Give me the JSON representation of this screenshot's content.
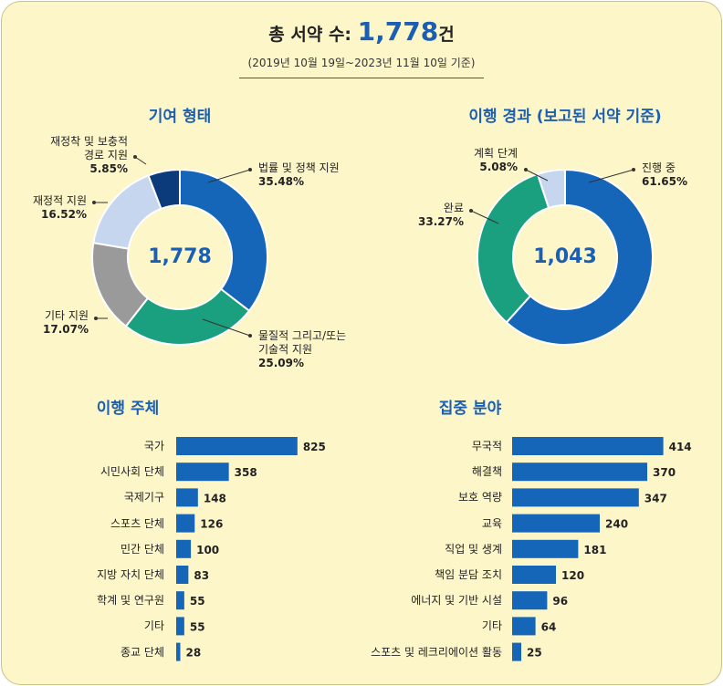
{
  "header": {
    "title": "총 서약 수:",
    "total": "1,778",
    "unit": "건",
    "subtitle": "(2019년 10월 19일~2023년 11월 10일 기준)"
  },
  "chart_data": [
    {
      "type": "donut",
      "title": "기여 형태",
      "center_label": "1,778",
      "categories": [
        "법률 및 정책 지원",
        "물질적 그리고/또는\n기술적 지원",
        "기타 지원",
        "재정적 지원",
        "재정착 및 보충적\n경로 지원"
      ],
      "values": [
        35.48,
        25.09,
        17.07,
        16.52,
        5.85
      ],
      "value_labels": [
        "35.48%",
        "25.09%",
        "17.07%",
        "16.52%",
        "5.85%"
      ],
      "colors": [
        "#1565b8",
        "#1aa07f",
        "#9a9a9a",
        "#c6d6ee",
        "#0b3b7a"
      ]
    },
    {
      "type": "donut",
      "title": "이행 경과 (보고된 서약 기준)",
      "center_label": "1,043",
      "categories": [
        "진행 중",
        "완료",
        "계획 단계"
      ],
      "values": [
        61.65,
        33.27,
        5.08
      ],
      "value_labels": [
        "61.65%",
        "33.27%",
        "5.08%"
      ],
      "colors": [
        "#1565b8",
        "#1aa07f",
        "#c6d6ee"
      ]
    },
    {
      "type": "bar",
      "title": "이행 주체",
      "color": "#1565b8",
      "xlim": [
        0,
        1000
      ],
      "categories": [
        "국가",
        "시민사회 단체",
        "국제기구",
        "스포츠 단체",
        "민간 단체",
        "지방 자치 단체",
        "학계 및 연구원",
        "기타",
        "종교 단체"
      ],
      "values": [
        825,
        358,
        148,
        126,
        100,
        83,
        55,
        55,
        28
      ]
    },
    {
      "type": "bar",
      "title": "집중 분야",
      "color": "#1565b8",
      "xlim": [
        0,
        500
      ],
      "categories": [
        "무국적",
        "해결책",
        "보호 역량",
        "교육",
        "직업 및 생계",
        "책임 분담 조치",
        "에너지 및 기반 시설",
        "기타",
        "스포츠 및 레크리에이션 활동"
      ],
      "values": [
        414,
        370,
        347,
        240,
        181,
        120,
        96,
        64,
        25
      ]
    }
  ]
}
